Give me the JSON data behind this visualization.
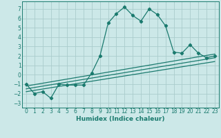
{
  "xlabel": "Humidex (Indice chaleur)",
  "background_color": "#cce8e8",
  "grid_color": "#aacccc",
  "line_color": "#1a7a6e",
  "xlim": [
    -0.5,
    23.5
  ],
  "ylim": [
    -3.5,
    7.8
  ],
  "xticks": [
    0,
    1,
    2,
    3,
    4,
    5,
    6,
    7,
    8,
    9,
    10,
    11,
    12,
    13,
    14,
    15,
    16,
    17,
    18,
    19,
    20,
    21,
    22,
    23
  ],
  "yticks": [
    -3,
    -2,
    -1,
    0,
    1,
    2,
    3,
    4,
    5,
    6,
    7
  ],
  "series": [
    {
      "x": [
        0,
        1,
        2,
        3,
        4,
        5,
        6,
        7,
        8,
        9,
        10,
        11,
        12,
        13,
        14,
        15,
        16,
        17,
        18,
        19,
        20,
        21,
        22,
        23
      ],
      "y": [
        -1,
        -2,
        -1.8,
        -2.5,
        -1,
        -1.1,
        -1.1,
        -1.1,
        0.2,
        2.0,
        5.5,
        6.5,
        7.2,
        6.3,
        5.7,
        7.0,
        6.4,
        5.2,
        2.4,
        2.3,
        3.2,
        2.3,
        1.8,
        2.0
      ],
      "marker": "D",
      "markersize": 2.2,
      "linewidth": 0.9
    },
    {
      "x": [
        0,
        23
      ],
      "y": [
        -1.2,
        2.2
      ],
      "marker": null,
      "linewidth": 0.9
    },
    {
      "x": [
        0,
        23
      ],
      "y": [
        -1.5,
        1.8
      ],
      "marker": null,
      "linewidth": 0.9
    },
    {
      "x": [
        0,
        23
      ],
      "y": [
        -1.8,
        1.4
      ],
      "marker": null,
      "linewidth": 0.9
    }
  ],
  "tick_fontsize": 5.5,
  "xlabel_fontsize": 6.5
}
